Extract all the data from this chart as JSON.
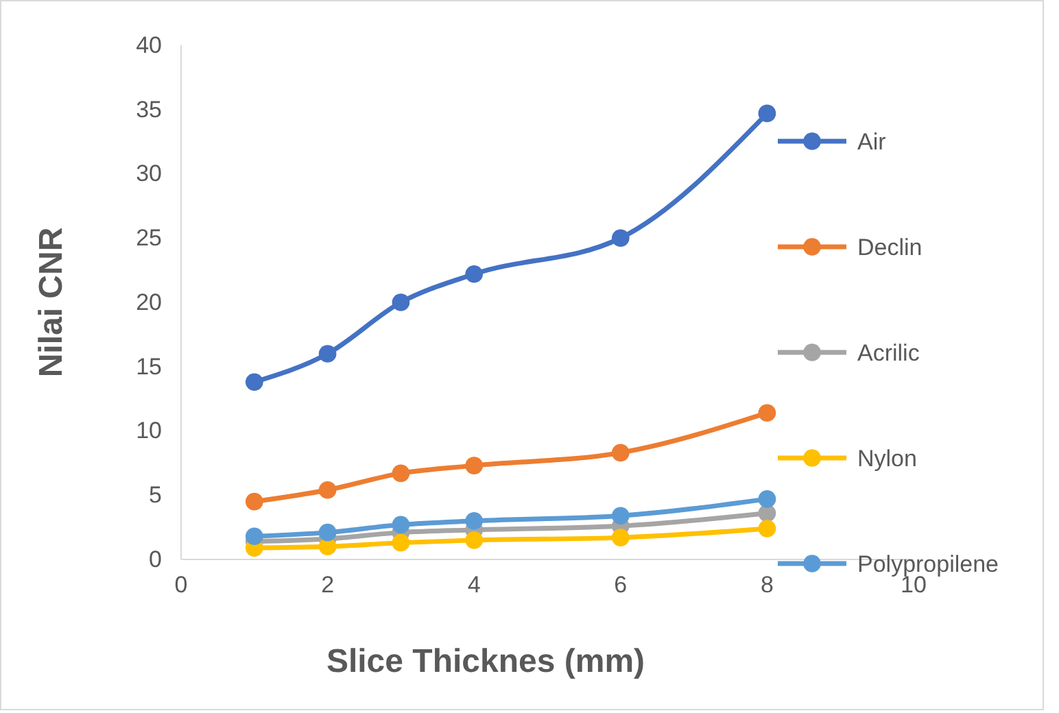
{
  "chart_data": {
    "type": "line",
    "xlabel": "Slice Thicknes (mm)",
    "ylabel": "Nilai CNR",
    "x": [
      1,
      2,
      3,
      4,
      6,
      8
    ],
    "series": [
      {
        "name": "Air",
        "color": "#4472c4",
        "values": [
          13.8,
          16,
          20,
          22.2,
          25,
          34.7
        ]
      },
      {
        "name": "Declin",
        "color": "#ed7d31",
        "values": [
          4.5,
          5.4,
          6.7,
          7.3,
          8.3,
          11.4
        ]
      },
      {
        "name": "Acrilic",
        "color": "#a5a5a5",
        "values": [
          1.4,
          1.6,
          2.1,
          2.3,
          2.6,
          3.6
        ]
      },
      {
        "name": "Nylon",
        "color": "#ffc000",
        "values": [
          0.9,
          1,
          1.3,
          1.5,
          1.7,
          2.4
        ]
      },
      {
        "name": "Polypropilene",
        "color": "#5b9bd5",
        "values": [
          1.8,
          2.1,
          2.7,
          3,
          3.4,
          4.7
        ]
      }
    ],
    "xlim": [
      0,
      10
    ],
    "xticks": [
      0,
      2,
      4,
      6,
      8,
      10
    ],
    "ylim": [
      0,
      40
    ],
    "yticks": [
      0,
      5,
      10,
      15,
      20,
      25,
      30,
      35,
      40
    ],
    "grid": false,
    "legend": "right",
    "marker": "circle",
    "line_style": "solid"
  }
}
